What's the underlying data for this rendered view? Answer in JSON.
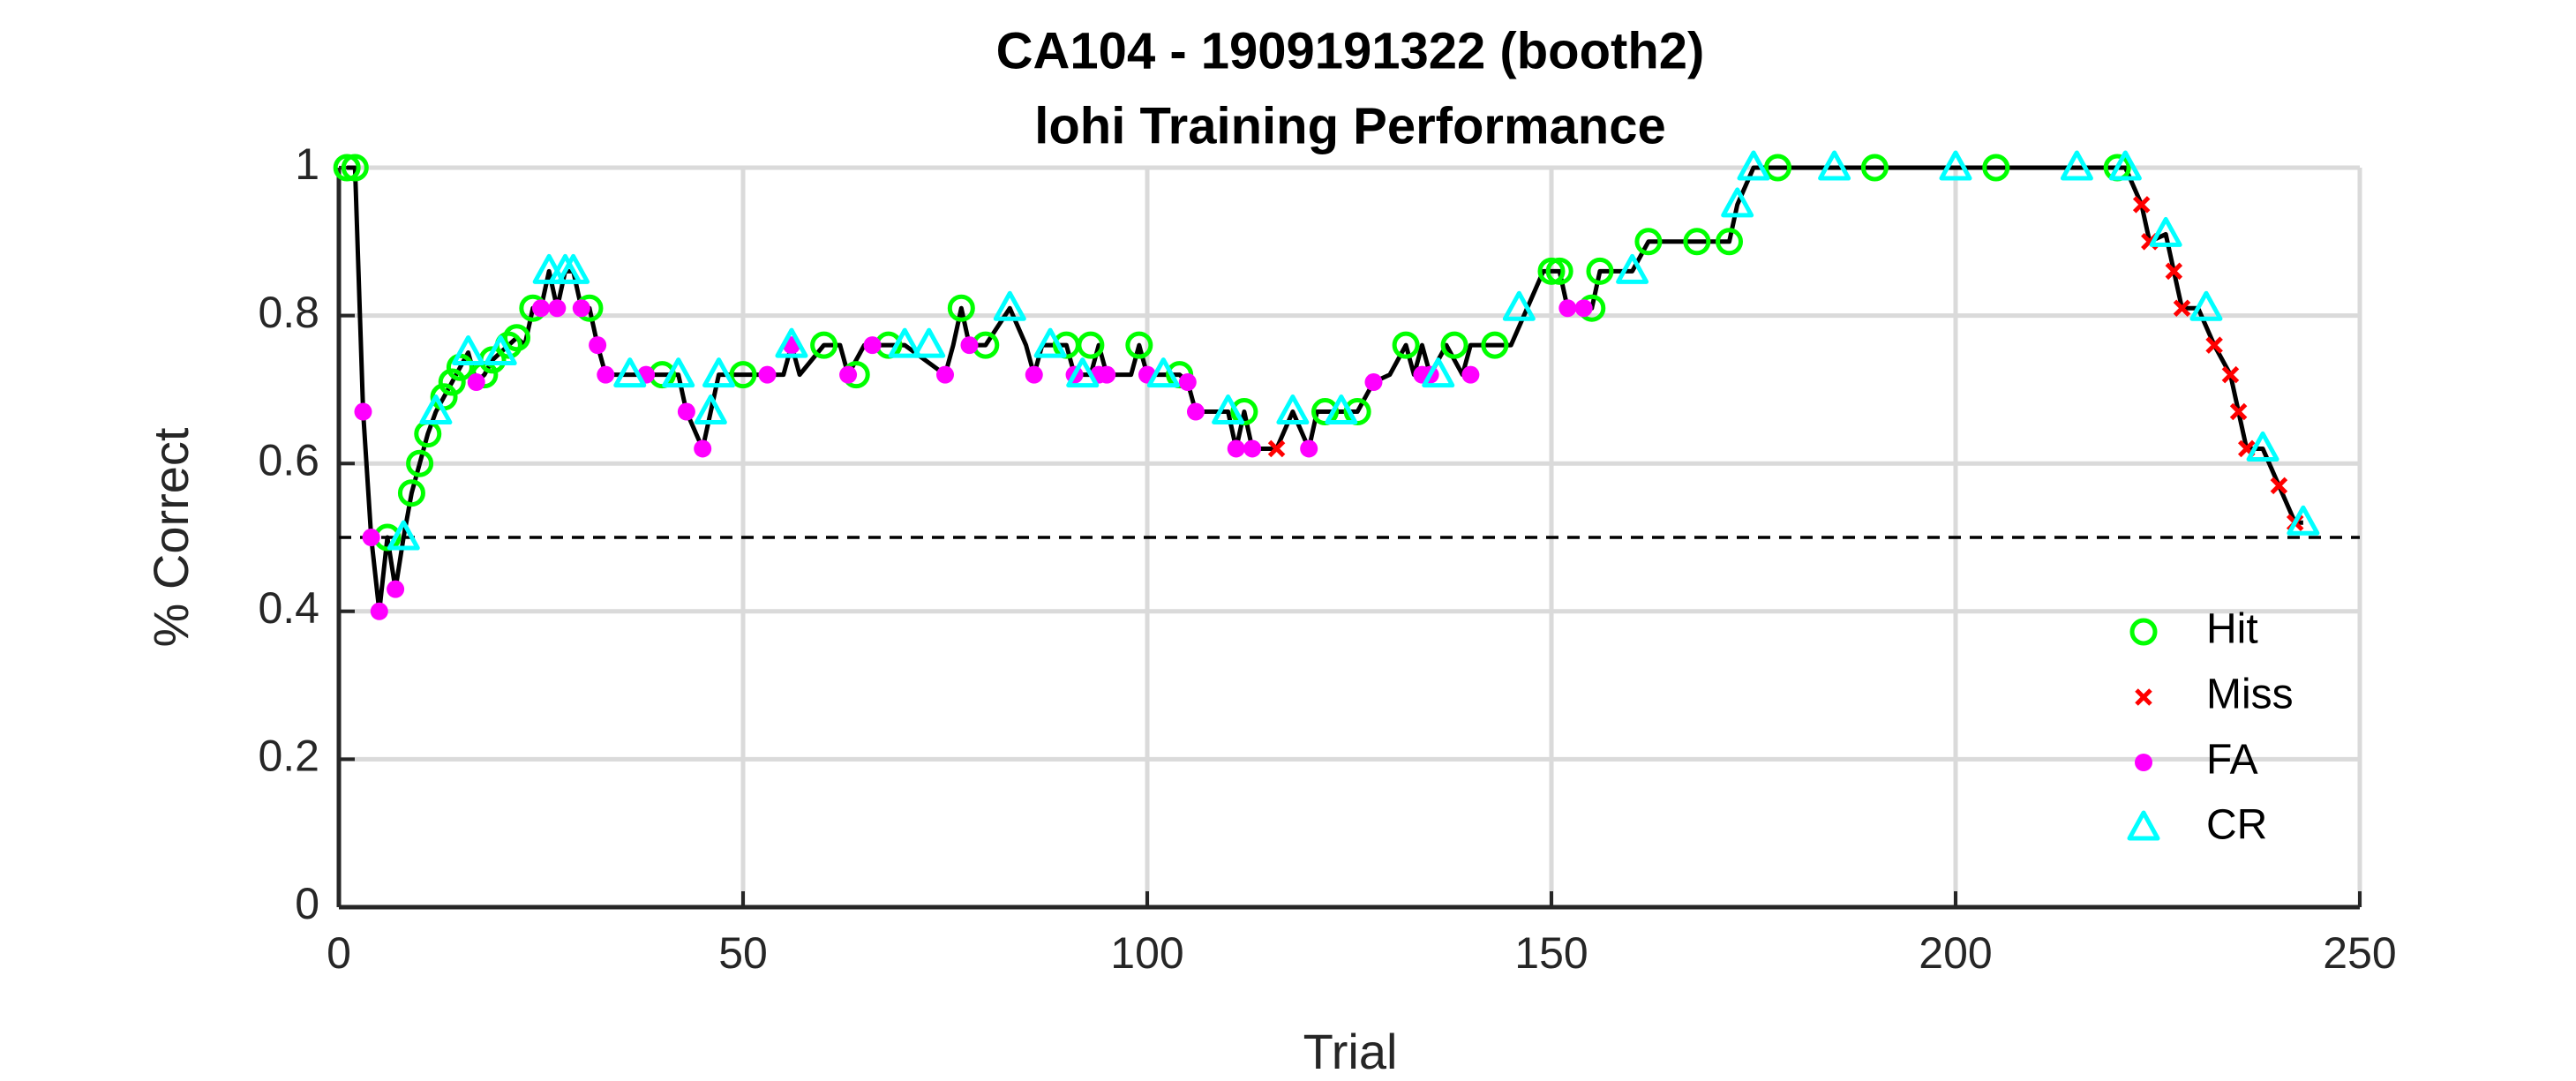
{
  "chart_data": {
    "type": "line",
    "title": "CA104 - 1909191322 (booth2)",
    "subtitle": "lohi Training Performance",
    "xlabel": "Trial",
    "ylabel": "% Correct",
    "xlim": [
      0,
      250
    ],
    "xticks": [
      0,
      50,
      100,
      150,
      200,
      250
    ],
    "ylim": [
      0,
      1
    ],
    "yticks": [
      0,
      0.2,
      0.4,
      0.6,
      0.8,
      1
    ],
    "grid": true,
    "legend": "lower right",
    "hline": 0.5,
    "color": "#000000",
    "x": [
      1,
      2,
      3,
      4,
      5,
      6,
      7,
      8,
      9,
      10,
      11,
      12,
      13,
      14,
      15,
      16,
      17,
      18,
      19,
      20,
      21,
      22,
      23,
      24,
      25,
      26,
      27,
      28,
      29,
      30,
      31,
      32,
      33,
      35,
      38,
      42,
      43,
      45,
      46,
      47,
      50,
      55,
      56,
      57,
      60,
      62,
      63,
      65,
      70,
      75,
      76,
      77,
      78,
      80,
      83,
      85,
      86,
      87,
      90,
      91,
      93,
      94,
      95,
      98,
      99,
      100,
      104,
      105,
      106,
      110,
      111,
      112,
      113,
      115,
      116,
      118,
      120,
      121,
      126,
      128,
      130,
      132,
      133,
      134,
      135,
      137,
      139,
      140,
      145,
      147,
      149,
      151,
      152,
      155,
      156,
      160,
      162,
      172,
      173,
      175,
      221,
      223,
      224,
      226,
      227,
      228,
      230,
      232,
      234,
      235,
      236,
      238,
      240,
      242,
      243
    ],
    "values": [
      1,
      1,
      0.67,
      0.5,
      0.4,
      0.5,
      0.43,
      0.5,
      0.56,
      0.6,
      0.64,
      0.67,
      0.69,
      0.71,
      0.73,
      0.75,
      0.71,
      0.72,
      0.74,
      0.75,
      0.76,
      0.77,
      0.76,
      0.81,
      0.81,
      0.86,
      0.81,
      0.86,
      0.86,
      0.81,
      0.81,
      0.76,
      0.72,
      0.72,
      0.72,
      0.72,
      0.67,
      0.62,
      0.67,
      0.72,
      0.72,
      0.72,
      0.76,
      0.72,
      0.76,
      0.76,
      0.72,
      0.76,
      0.76,
      0.72,
      0.76,
      0.81,
      0.76,
      0.76,
      0.81,
      0.76,
      0.72,
      0.76,
      0.76,
      0.72,
      0.72,
      0.76,
      0.72,
      0.72,
      0.76,
      0.72,
      0.72,
      0.71,
      0.67,
      0.67,
      0.62,
      0.67,
      0.62,
      0.62,
      0.62,
      0.67,
      0.62,
      0.67,
      0.67,
      0.71,
      0.72,
      0.76,
      0.72,
      0.76,
      0.72,
      0.76,
      0.72,
      0.76,
      0.76,
      0.81,
      0.86,
      0.86,
      0.81,
      0.81,
      0.86,
      0.86,
      0.9,
      0.9,
      0.95,
      1,
      1,
      0.95,
      0.9,
      0.91,
      0.86,
      0.81,
      0.81,
      0.76,
      0.72,
      0.67,
      0.62,
      0.62,
      0.57,
      0.52,
      0.52
    ],
    "series": [
      {
        "name": "Hit",
        "color": "#00ff00",
        "marker": "circle",
        "x": [
          1,
          2,
          6,
          9,
          10,
          11,
          13,
          14,
          15,
          18,
          19,
          21,
          22,
          24,
          31,
          40,
          50,
          60,
          64,
          68,
          77,
          80,
          90,
          93,
          99,
          104,
          112,
          122,
          126,
          132,
          138,
          143,
          150,
          151,
          155,
          156,
          162,
          168,
          172,
          178,
          190,
          205,
          220
        ],
        "values": [
          1,
          1,
          0.5,
          0.56,
          0.6,
          0.64,
          0.69,
          0.71,
          0.73,
          0.72,
          0.74,
          0.76,
          0.77,
          0.81,
          0.81,
          0.72,
          0.72,
          0.76,
          0.72,
          0.76,
          0.81,
          0.76,
          0.76,
          0.76,
          0.76,
          0.72,
          0.67,
          0.67,
          0.67,
          0.76,
          0.76,
          0.76,
          0.86,
          0.86,
          0.81,
          0.86,
          0.9,
          0.9,
          0.9,
          1,
          1,
          1,
          1
        ]
      },
      {
        "name": "Miss",
        "color": "#ff0000",
        "marker": "x",
        "x": [
          116,
          223,
          224,
          227,
          228,
          232,
          234,
          235,
          236,
          240,
          242
        ],
        "values": [
          0.62,
          0.95,
          0.9,
          0.86,
          0.81,
          0.76,
          0.72,
          0.67,
          0.62,
          0.57,
          0.52
        ]
      },
      {
        "name": "FA",
        "color": "#ff00ff",
        "marker": "dot",
        "x": [
          3,
          4,
          5,
          7,
          17,
          25,
          27,
          30,
          32,
          33,
          38,
          43,
          45,
          53,
          56,
          63,
          66,
          75,
          78,
          86,
          91,
          94,
          95,
          100,
          105,
          106,
          111,
          113,
          120,
          128,
          134,
          135,
          140,
          152,
          154
        ],
        "values": [
          0.67,
          0.5,
          0.4,
          0.43,
          0.71,
          0.81,
          0.81,
          0.81,
          0.76,
          0.72,
          0.72,
          0.67,
          0.62,
          0.72,
          0.76,
          0.72,
          0.76,
          0.72,
          0.76,
          0.72,
          0.72,
          0.72,
          0.72,
          0.72,
          0.71,
          0.67,
          0.62,
          0.62,
          0.62,
          0.71,
          0.72,
          0.72,
          0.72,
          0.81,
          0.81
        ]
      },
      {
        "name": "CR",
        "color": "#00ffff",
        "marker": "triangle",
        "x": [
          8,
          12,
          16,
          20,
          26,
          28,
          29,
          36,
          42,
          46,
          47,
          56,
          70,
          73,
          83,
          88,
          92,
          102,
          110,
          118,
          124,
          136,
          146,
          160,
          173,
          175,
          185,
          200,
          215,
          221,
          226,
          231,
          238,
          243
        ],
        "values": [
          0.5,
          0.67,
          0.75,
          0.75,
          0.86,
          0.86,
          0.86,
          0.72,
          0.72,
          0.67,
          0.72,
          0.76,
          0.76,
          0.76,
          0.81,
          0.76,
          0.72,
          0.72,
          0.67,
          0.67,
          0.67,
          0.72,
          0.81,
          0.86,
          0.95,
          1,
          1,
          1,
          1,
          1,
          0.91,
          0.81,
          0.62,
          0.52
        ]
      }
    ]
  }
}
